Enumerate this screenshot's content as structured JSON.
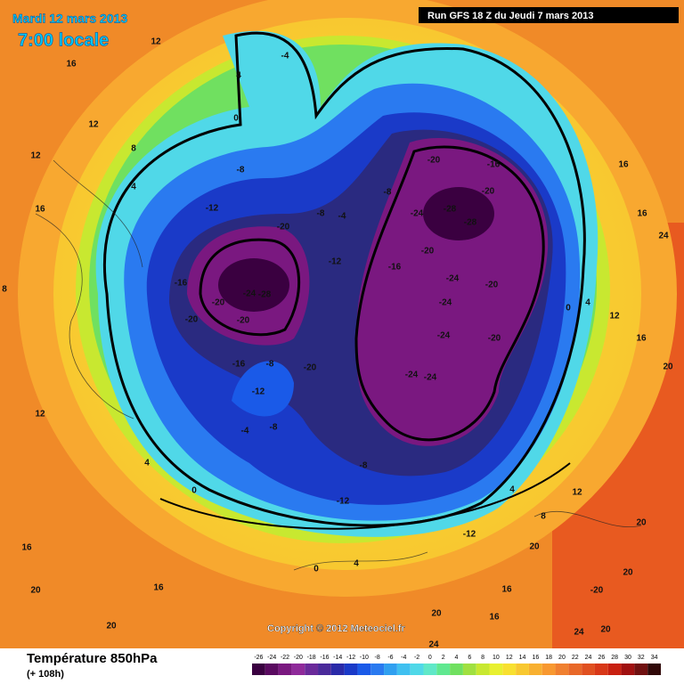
{
  "header": {
    "date": "Mardi 12 mars 2013",
    "time": "7:00 locale",
    "run": "Run GFS 18 Z du Jeudi 7 mars 2013",
    "copyright": "Copyright © 2012 Meteociel.fr"
  },
  "footer": {
    "title": "Température 850hPa",
    "lead": "(+ 108h)"
  },
  "colorbar": {
    "ticks": [
      -26,
      -24,
      -22,
      -20,
      -18,
      -16,
      -14,
      -12,
      -10,
      -8,
      -6,
      -4,
      -2,
      0,
      2,
      4,
      6,
      8,
      10,
      12,
      14,
      16,
      18,
      20,
      22,
      24,
      26,
      28,
      30,
      32,
      34
    ],
    "colors": [
      "#3a0040",
      "#5a0a60",
      "#7a1880",
      "#8f2a9a",
      "#6a2a9a",
      "#4a2a9a",
      "#2a2aa8",
      "#1a3ac8",
      "#1a5ae8",
      "#2a7af0",
      "#30a0f0",
      "#40c0f0",
      "#50d8e8",
      "#60e8c8",
      "#60e890",
      "#70e060",
      "#a0e040",
      "#c8e830",
      "#e8f030",
      "#f8e030",
      "#f8c830",
      "#f8b030",
      "#f89830",
      "#f08030",
      "#e86828",
      "#e05020",
      "#d83818",
      "#c82010",
      "#a01010",
      "#701010",
      "#300808"
    ]
  },
  "map": {
    "contour_labels": [
      12,
      16,
      12,
      12,
      16,
      8,
      4,
      4,
      0,
      -4,
      -8,
      -12,
      -20,
      -16,
      -24,
      -28,
      -20,
      -20,
      -20,
      -12,
      -4,
      -8,
      -8,
      -16,
      -20,
      -16,
      -28,
      -28,
      -24,
      -20,
      -20,
      -24,
      -24,
      -20,
      -24,
      -20,
      -24,
      -24,
      -20,
      -16,
      -8,
      -12,
      -4,
      -8,
      -12,
      -8,
      0,
      4,
      4,
      8,
      12,
      20,
      16,
      20,
      24,
      16,
      16,
      0,
      4,
      12,
      20,
      20,
      16,
      20,
      16,
      -20,
      20,
      20,
      24,
      24,
      20,
      16,
      -12,
      0,
      4,
      8,
      12,
      16
    ]
  }
}
